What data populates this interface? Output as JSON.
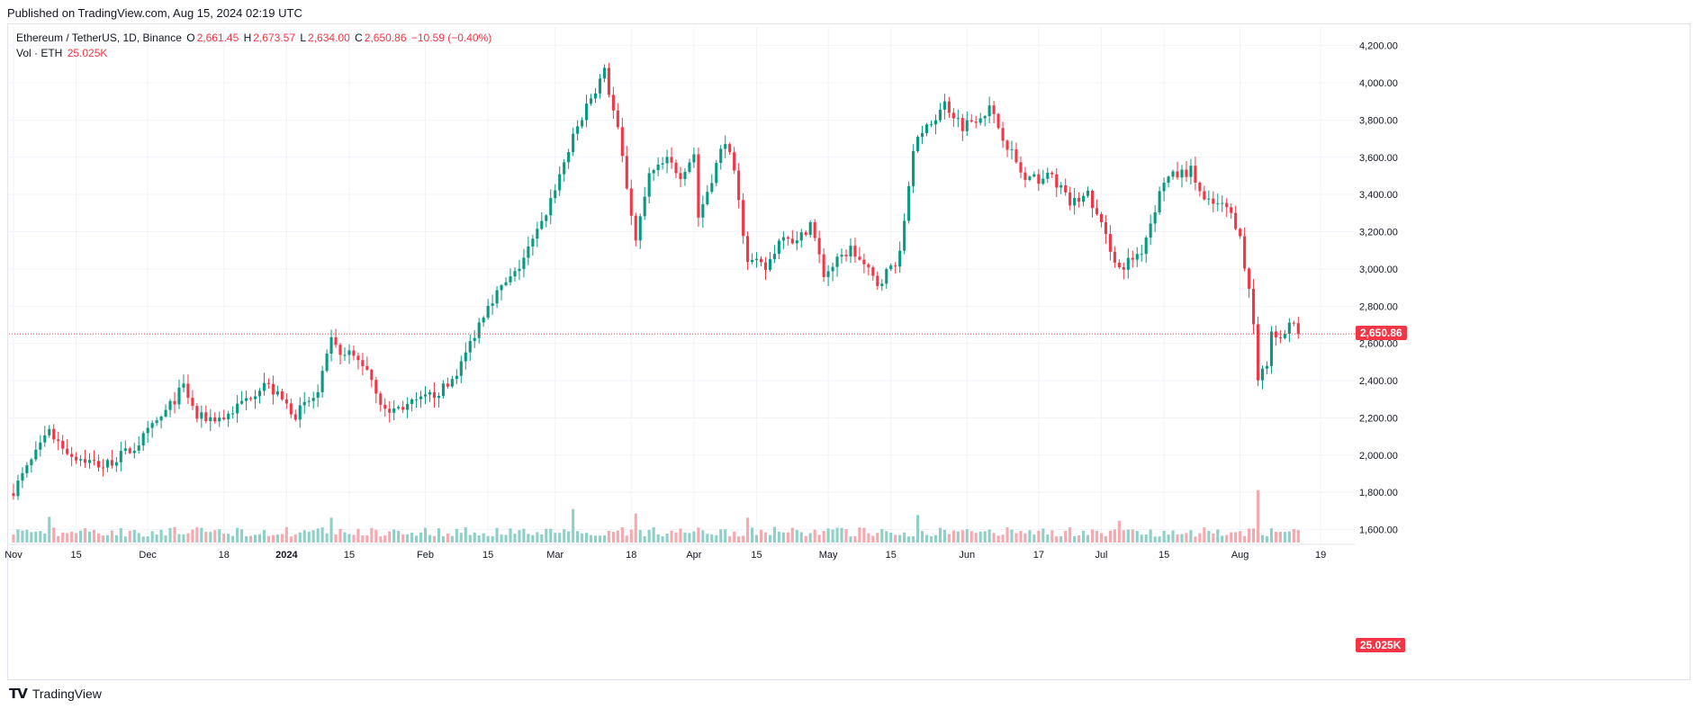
{
  "header": {
    "published": "Published on TradingView.com, Aug 15, 2024 02:19 UTC"
  },
  "legend": {
    "symbol": "Ethereum / TetherUS, 1D, Binance",
    "o_label": "O",
    "o_value": "2,661.45",
    "h_label": "H",
    "h_value": "2,673.57",
    "l_label": "L",
    "l_value": "2,634.00",
    "c_label": "C",
    "c_value": "2,650.86",
    "change": "−10.59 (−0.40%)",
    "vol_label": "Vol · ETH",
    "vol_value": "25.025K"
  },
  "badges": {
    "last_price": "2,650.86",
    "last_volume": "25.025K"
  },
  "footer": {
    "brand": "TradingView"
  },
  "colors": {
    "up": "#089981",
    "down": "#f23645",
    "vol_up": "#8ecfc7",
    "vol_down": "#f7a7ae",
    "grid": "#f0f3fa",
    "axis_text": "#131722"
  },
  "chart_data": {
    "type": "candlestick",
    "symbol": "Ethereum / TetherUS",
    "interval": "1D",
    "exchange": "Binance",
    "y_ticks": [
      "4,200.00",
      "4,000.00",
      "3,800.00",
      "3,600.00",
      "3,400.00",
      "3,200.00",
      "3,000.00",
      "2,800.00",
      "2,600.00",
      "2,400.00",
      "2,200.00",
      "2,000.00",
      "1,800.00",
      "1,600.00"
    ],
    "x_ticks": [
      "Nov",
      "15",
      "Dec",
      "18",
      "2024",
      "15",
      "Feb",
      "15",
      "Mar",
      "18",
      "Apr",
      "15",
      "May",
      "15",
      "Jun",
      "17",
      "Jul",
      "15",
      "Aug",
      "19"
    ],
    "ylim": [
      1530,
      4300
    ],
    "last_price": 2650.86,
    "close_path": [
      [
        "2023-11-01",
        1810
      ],
      [
        "2023-11-09",
        2120
      ],
      [
        "2023-11-14",
        2000
      ],
      [
        "2023-11-21",
        1940
      ],
      [
        "2023-11-28",
        2040
      ],
      [
        "2023-12-05",
        2230
      ],
      [
        "2023-12-09",
        2370
      ],
      [
        "2023-12-12",
        2200
      ],
      [
        "2023-12-18",
        2200
      ],
      [
        "2023-12-23",
        2300
      ],
      [
        "2023-12-27",
        2390
      ],
      [
        "2024-01-03",
        2220
      ],
      [
        "2024-01-08",
        2330
      ],
      [
        "2024-01-11",
        2610
      ],
      [
        "2024-01-13",
        2520
      ],
      [
        "2024-01-15",
        2540
      ],
      [
        "2024-01-19",
        2470
      ],
      [
        "2024-01-23",
        2230
      ],
      [
        "2024-01-31",
        2290
      ],
      [
        "2024-02-06",
        2370
      ],
      [
        "2024-02-09",
        2490
      ],
      [
        "2024-02-15",
        2820
      ],
      [
        "2024-02-21",
        2970
      ],
      [
        "2024-02-27",
        3240
      ],
      [
        "2024-03-04",
        3640
      ],
      [
        "2024-03-08",
        3880
      ],
      [
        "2024-03-12",
        4060
      ],
      [
        "2024-03-15",
        3740
      ],
      [
        "2024-03-19",
        3150
      ],
      [
        "2024-03-22",
        3500
      ],
      [
        "2024-03-26",
        3580
      ],
      [
        "2024-03-29",
        3510
      ],
      [
        "2024-04-01",
        3620
      ],
      [
        "2024-04-02",
        3280
      ],
      [
        "2024-04-08",
        3700
      ],
      [
        "2024-04-10",
        3500
      ],
      [
        "2024-04-13",
        3050
      ],
      [
        "2024-04-17",
        3000
      ],
      [
        "2024-04-21",
        3200
      ],
      [
        "2024-04-24",
        3140
      ],
      [
        "2024-04-27",
        3250
      ],
      [
        "2024-04-30",
        2970
      ],
      [
        "2024-05-06",
        3110
      ],
      [
        "2024-05-12",
        2920
      ],
      [
        "2024-05-17",
        3070
      ],
      [
        "2024-05-20",
        3650
      ],
      [
        "2024-05-23",
        3750
      ],
      [
        "2024-05-27",
        3890
      ],
      [
        "2024-05-31",
        3770
      ],
      [
        "2024-06-06",
        3860
      ],
      [
        "2024-06-10",
        3670
      ],
      [
        "2024-06-14",
        3470
      ],
      [
        "2024-06-20",
        3500
      ],
      [
        "2024-06-24",
        3350
      ],
      [
        "2024-06-28",
        3400
      ],
      [
        "2024-07-05",
        3000
      ],
      [
        "2024-07-10",
        3100
      ],
      [
        "2024-07-15",
        3480
      ],
      [
        "2024-07-21",
        3530
      ],
      [
        "2024-07-24",
        3360
      ],
      [
        "2024-07-29",
        3330
      ],
      [
        "2024-08-01",
        3200
      ],
      [
        "2024-08-02",
        2990
      ],
      [
        "2024-08-03",
        2900
      ],
      [
        "2024-08-04",
        2700
      ],
      [
        "2024-08-05",
        2420
      ],
      [
        "2024-08-07",
        2450
      ],
      [
        "2024-08-08",
        2680
      ],
      [
        "2024-08-10",
        2600
      ],
      [
        "2024-08-12",
        2720
      ],
      [
        "2024-08-14",
        2650.86
      ]
    ],
    "volume_ylim": [
      0,
      1800000
    ],
    "volume_spikes": [
      {
        "date": "2023-11-09",
        "volume": 860000
      },
      {
        "date": "2024-01-11",
        "volume": 830000
      },
      {
        "date": "2024-03-05",
        "volume": 1120000
      },
      {
        "date": "2024-03-19",
        "volume": 970000
      },
      {
        "date": "2024-04-13",
        "volume": 830000
      },
      {
        "date": "2024-05-21",
        "volume": 920000
      },
      {
        "date": "2024-07-05",
        "volume": 730000
      },
      {
        "date": "2024-08-05",
        "volume": 1750000
      }
    ]
  }
}
